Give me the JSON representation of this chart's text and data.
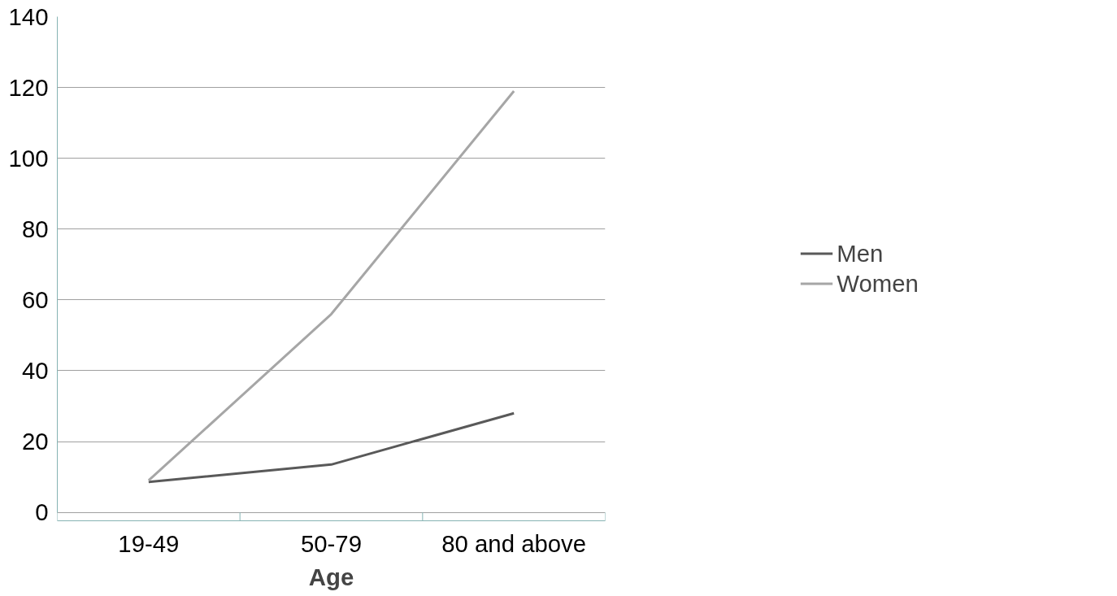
{
  "chart_data": {
    "type": "line",
    "xlabel": "Age",
    "categories": [
      "19-49",
      "50-79",
      "80 and above"
    ],
    "series": [
      {
        "name": "Men",
        "color": "#595959",
        "values": [
          8.6,
          13.5,
          28
        ]
      },
      {
        "name": "Women",
        "color": "#a6a6a6",
        "values": [
          9,
          56,
          119
        ]
      }
    ],
    "ylim": [
      0,
      140
    ],
    "yticks": [
      0,
      20,
      40,
      60,
      80,
      100,
      120,
      140
    ],
    "grid": "y",
    "legend": "right",
    "marker": "none",
    "line_style": "solid"
  }
}
